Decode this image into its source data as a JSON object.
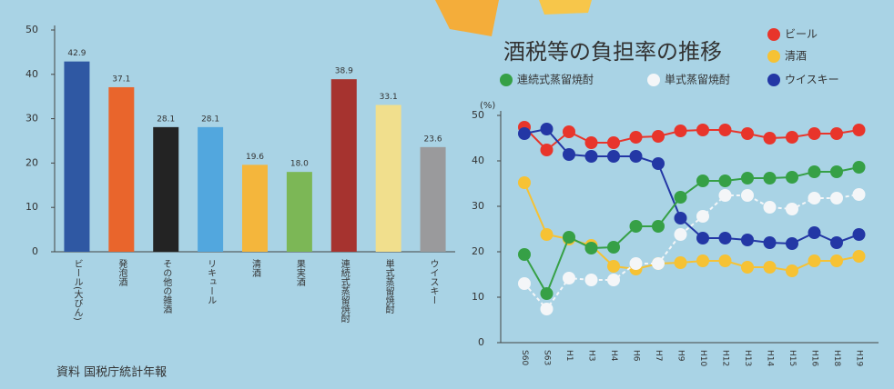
{
  "chart_data": [
    {
      "type": "bar",
      "categories": [
        "ビール(大びん)",
        "発泡酒",
        "その他の雑酒",
        "リキュール",
        "清酒",
        "果実酒",
        "連続式蒸留焼酎",
        "単式蒸留焼酎",
        "ウイスキー"
      ],
      "values": [
        42.9,
        37.1,
        28.1,
        28.1,
        19.6,
        18.0,
        38.9,
        33.1,
        23.6
      ],
      "value_labels": [
        "42.9",
        "37.1",
        "28.1",
        "28.1",
        "19.6",
        "18.0",
        "38.9",
        "33.1",
        "23.6"
      ],
      "colors": [
        "#2f58a3",
        "#e9652c",
        "#232323",
        "#52a7de",
        "#f4b63c",
        "#7cb756",
        "#a6332f",
        "#f1df8d",
        "#9a9a9c"
      ],
      "ylim": [
        0,
        50
      ],
      "yticks": [
        0,
        10,
        20,
        30,
        40,
        50
      ],
      "source": "資料 国税庁統計年報"
    },
    {
      "type": "line",
      "title": "酒税等の負担率の推移",
      "ylabel": "(%)",
      "categories": [
        "S60",
        "S63",
        "H1",
        "H3",
        "H4",
        "H6",
        "H7",
        "H9",
        "H10",
        "H12",
        "H13",
        "H14",
        "H15",
        "H16",
        "H18",
        "H19"
      ],
      "series": [
        {
          "name": "ビール",
          "color": "#e8352b",
          "values": [
            47.4,
            42.4,
            46.4,
            44,
            44,
            45.2,
            45.4,
            46.6,
            46.8,
            46.8,
            46,
            45,
            45.2,
            46,
            46,
            46.8
          ]
        },
        {
          "name": "清酒",
          "color": "#f6c234",
          "values": [
            35.2,
            23.8,
            22.8,
            21.4,
            16.8,
            16.2,
            17.4,
            17.6,
            18,
            18,
            16.6,
            16.6,
            15.8,
            18,
            18,
            19
          ]
        },
        {
          "name": "ウイスキー",
          "color": "#2337a5",
          "values": [
            46,
            47,
            41.4,
            41,
            41,
            41,
            39.4,
            27.4,
            23,
            23,
            22.6,
            22,
            21.8,
            24.2,
            22,
            23.8
          ]
        },
        {
          "name": "連続式蒸留焼酎",
          "color": "#36a046",
          "values": [
            19.4,
            10.8,
            23.2,
            20.8,
            21,
            25.6,
            25.6,
            32,
            35.6,
            35.6,
            36.2,
            36.2,
            36.4,
            37.6,
            37.6,
            38.6
          ]
        },
        {
          "name": "単式蒸留焼酎",
          "color": "#f4f6f8",
          "values": [
            13,
            7.4,
            14.2,
            13.8,
            13.8,
            17.4,
            17.4,
            23.8,
            27.8,
            32.4,
            32.4,
            29.8,
            29.4,
            31.8,
            31.8,
            32.6
          ]
        }
      ],
      "ylim": [
        0,
        50
      ],
      "yticks": [
        0,
        10,
        20,
        30,
        40,
        50
      ]
    }
  ]
}
